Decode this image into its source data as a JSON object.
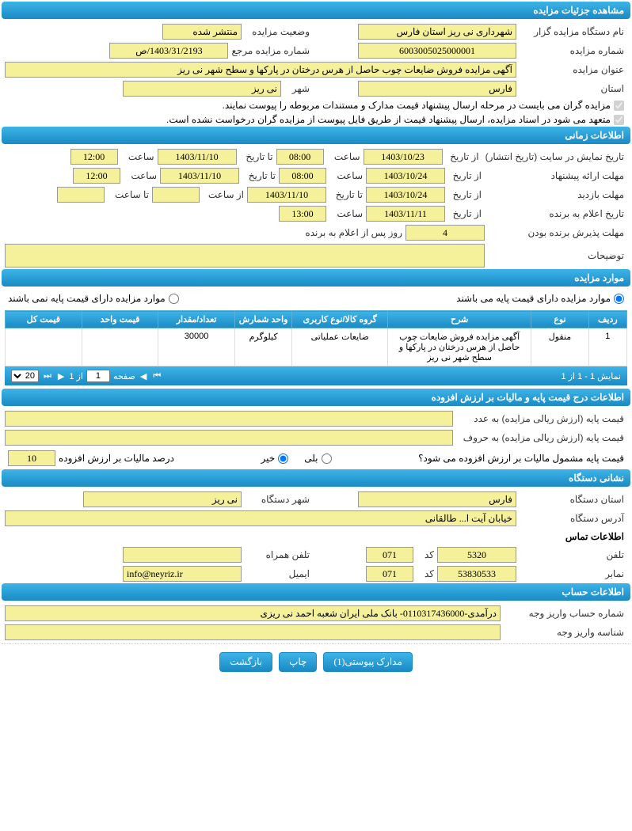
{
  "sections": {
    "details_title": "مشاهده جزئیات مزایده",
    "time_title": "اطلاعات زمانی",
    "items_title": "موارد مزایده",
    "price_title": "اطلاعات درج قیمت پایه و مالیات بر ارزش افزوده",
    "addr_title": "نشانی دستگاه",
    "account_title": "اطلاعات حساب"
  },
  "details": {
    "org_label": "نام دستگاه مزایده گزار",
    "org_value": "شهرداری نی ریز استان فارس",
    "status_label": "وضعیت مزایده",
    "status_value": "منتشر شده",
    "auction_no_label": "شماره مزایده",
    "auction_no_value": "6003005025000001",
    "ref_no_label": "شماره مزایده مرجع",
    "ref_no_value": "1403/31/2193/ص",
    "title_label": "عنوان مزایده",
    "title_value": "آگهی مزایده فروش ضایعات چوب حاصل از هرس درختان در پارکها و سطح شهر نی ریز",
    "province_label": "استان",
    "province_value": "فارس",
    "city_label": "شهر",
    "city_value": "نی ریز",
    "check1": "مزایده گران می بایست در مرحله ارسال پیشنهاد قیمت مدارک و مستندات مربوطه را پیوست نمایند.",
    "check2": "متعهد می شود در اسناد مزایده، ارسال پیشنهاد قیمت از طریق فایل پیوست از مزایده گران درخواست نشده است."
  },
  "time": {
    "display_label": "تاریخ نمایش در سایت (تاریخ انتشار)",
    "from_date_label": "از تاریخ",
    "to_date_label": "تا تاریخ",
    "time_label": "ساعت",
    "to_time_label": "تا ساعت",
    "from_time_label": "از ساعت",
    "display_from": "1403/10/23",
    "display_from_time": "08:00",
    "display_to": "1403/11/10",
    "display_to_time": "12:00",
    "proposal_label": "مهلت ارائه پیشنهاد",
    "proposal_from": "1403/10/24",
    "proposal_from_time": "08:00",
    "proposal_to": "1403/11/10",
    "proposal_to_time": "12:00",
    "visit_label": "مهلت بازدید",
    "visit_from": "1403/10/24",
    "visit_to": "1403/11/10",
    "visit_from_time": "",
    "visit_to_time": "",
    "winner_label": "تاریخ اعلام به برنده",
    "winner_from": "1403/11/11",
    "winner_time": "13:00",
    "accept_label": "مهلت پذیرش برنده بودن",
    "accept_value": "4",
    "accept_unit": "روز پس از اعلام به برنده",
    "desc_label": "توضیحات",
    "desc_value": ""
  },
  "items": {
    "radio_has_base": "موارد مزایده دارای قیمت پایه می باشند",
    "radio_no_base": "موارد مزایده دارای قیمت پایه نمی باشند",
    "cols": {
      "row": "ردیف",
      "type": "نوع",
      "desc": "شرح",
      "group": "گروه کالا/نوع کاربری",
      "unit": "واحد شمارش",
      "qty": "تعداد/مقدار",
      "unit_price": "قیمت واحد",
      "total_price": "قیمت کل"
    },
    "rows": [
      {
        "row": "1",
        "type": "منقول",
        "desc": "آگهی مزایده فروش ضایعات چوب حاصل از هرس درختان در پارکها و سطح شهر نی ریز",
        "group": "ضایعات عملیاتی",
        "unit": "کیلوگرم",
        "qty": "30000",
        "unit_price": "",
        "total_price": ""
      }
    ],
    "pager": {
      "display": "نمایش 1 - 1 از 1",
      "page_label": "صفحه",
      "page_val": "1",
      "of_label": "از 1",
      "page_size": "20"
    }
  },
  "price": {
    "base_num_label": "قیمت پایه (ارزش ریالی مزایده) به عدد",
    "base_num_value": "",
    "base_text_label": "قیمت پایه (ارزش ریالی مزایده) به حروف",
    "base_text_value": "",
    "tax_question": "قیمت پایه مشمول مالیات بر ارزش افزوده می شود؟",
    "yes": "بلی",
    "no": "خیر",
    "tax_percent_label": "درصد مالیات بر ارزش افزوده",
    "tax_percent_value": "10"
  },
  "addr": {
    "province_label": "استان دستگاه",
    "province_value": "فارس",
    "city_label": "شهر دستگاه",
    "city_value": "نی ریز",
    "address_label": "آدرس دستگاه",
    "address_value": "خیابان آیت ا... طالقانی",
    "contact_header": "اطلاعات تماس",
    "phone_label": "تلفن",
    "phone_value": "5320",
    "code_label": "کد",
    "phone_code": "071",
    "mobile_label": "تلفن همراه",
    "mobile_value": "",
    "fax_label": "نمابر",
    "fax_value": "53830533",
    "fax_code": "071",
    "email_label": "ایمیل",
    "email_value": "info@neyriz.ir"
  },
  "account": {
    "account_label": "شماره حساب واریز وجه",
    "account_value": "درآمدی-0110317436000- بانک ملی ایران شعبه احمد نی ریزی",
    "id_label": "شناسه واریز وجه",
    "id_value": ""
  },
  "buttons": {
    "attachments": "مدارک پیوستی(1)",
    "print": "چاپ",
    "back": "بازگشت"
  },
  "colors": {
    "header_grad_top": "#3db4e8",
    "header_grad_bottom": "#1a8ac4",
    "input_bg": "#f5f09a",
    "input_border": "#999"
  }
}
